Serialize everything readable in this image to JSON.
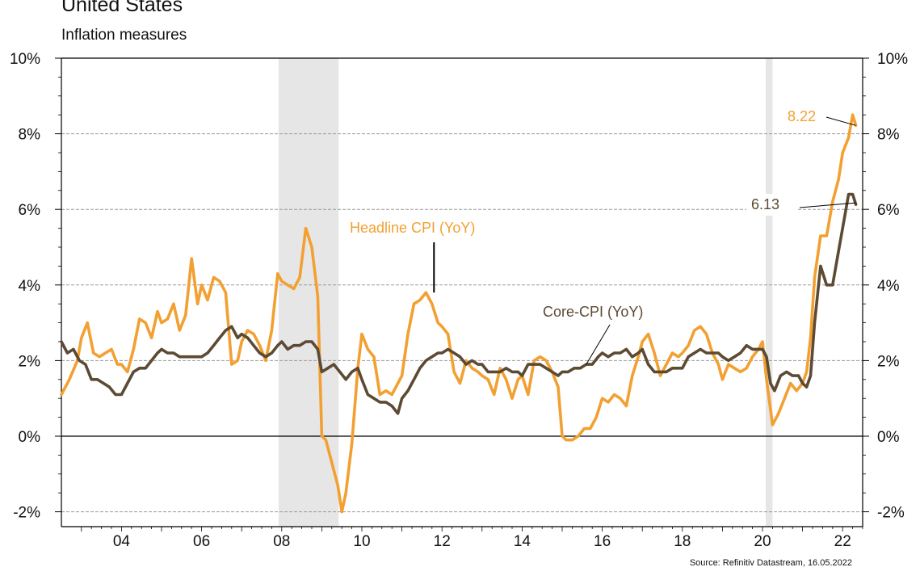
{
  "header": {
    "title": "United States",
    "subtitle": "Inflation measures"
  },
  "source": "Source: Refinitiv Datastream, 16.05.2022",
  "colors": {
    "headline": "#F2A032",
    "core": "#5C4A33",
    "recession": "#E6E6E6",
    "zero_line": "#000000",
    "grid": "#9A9A9A"
  },
  "chart_data": {
    "type": "line",
    "title": "United States",
    "subtitle": "Inflation measures",
    "y_ticks": [
      -2,
      0,
      2,
      4,
      6,
      8,
      10
    ],
    "y_tick_labels": [
      "-2%",
      "0%",
      "2%",
      "4%",
      "6%",
      "8%",
      "10%"
    ],
    "x_ticks": [
      2004,
      2006,
      2008,
      2010,
      2012,
      2014,
      2016,
      2018,
      2020,
      2022
    ],
    "x_tick_labels": [
      "04",
      "06",
      "08",
      "10",
      "12",
      "14",
      "16",
      "18",
      "20",
      "22"
    ],
    "xlim": [
      2002.5,
      2022.5
    ],
    "ylim": [
      -2.5,
      10
    ],
    "grid": "horizontal dashed",
    "recessions": [
      [
        2007.92,
        2009.42
      ],
      [
        2020.08,
        2020.25
      ]
    ],
    "annotations": [
      {
        "text": "8.22",
        "series": "Headline CPI (YoY)",
        "value": 8.22
      },
      {
        "text": "6.13",
        "series": "Core-CPI (YoY)",
        "value": 6.13
      }
    ],
    "series": [
      {
        "name": "Headline CPI (YoY)",
        "color": "#F2A032",
        "points": [
          [
            2002.5,
            1.1
          ],
          [
            2002.7,
            1.5
          ],
          [
            2002.9,
            2.0
          ],
          [
            2003.0,
            2.6
          ],
          [
            2003.15,
            3.0
          ],
          [
            2003.3,
            2.2
          ],
          [
            2003.45,
            2.1
          ],
          [
            2003.6,
            2.2
          ],
          [
            2003.75,
            2.3
          ],
          [
            2003.9,
            1.9
          ],
          [
            2004.0,
            1.9
          ],
          [
            2004.15,
            1.7
          ],
          [
            2004.3,
            2.3
          ],
          [
            2004.45,
            3.1
          ],
          [
            2004.6,
            3.0
          ],
          [
            2004.75,
            2.6
          ],
          [
            2004.9,
            3.3
          ],
          [
            2005.0,
            3.0
          ],
          [
            2005.15,
            3.1
          ],
          [
            2005.3,
            3.5
          ],
          [
            2005.45,
            2.8
          ],
          [
            2005.6,
            3.2
          ],
          [
            2005.75,
            4.7
          ],
          [
            2005.9,
            3.5
          ],
          [
            2006.0,
            4.0
          ],
          [
            2006.15,
            3.6
          ],
          [
            2006.3,
            4.2
          ],
          [
            2006.45,
            4.1
          ],
          [
            2006.6,
            3.8
          ],
          [
            2006.75,
            1.9
          ],
          [
            2006.9,
            2.0
          ],
          [
            2007.0,
            2.5
          ],
          [
            2007.15,
            2.8
          ],
          [
            2007.3,
            2.7
          ],
          [
            2007.45,
            2.4
          ],
          [
            2007.6,
            2.0
          ],
          [
            2007.75,
            2.8
          ],
          [
            2007.9,
            4.3
          ],
          [
            2008.0,
            4.1
          ],
          [
            2008.15,
            4.0
          ],
          [
            2008.3,
            3.9
          ],
          [
            2008.45,
            4.2
          ],
          [
            2008.6,
            5.5
          ],
          [
            2008.75,
            5.0
          ],
          [
            2008.9,
            3.7
          ],
          [
            2009.0,
            0.0
          ],
          [
            2009.1,
            -0.1
          ],
          [
            2009.25,
            -0.7
          ],
          [
            2009.4,
            -1.3
          ],
          [
            2009.5,
            -2.0
          ],
          [
            2009.6,
            -1.5
          ],
          [
            2009.75,
            -0.2
          ],
          [
            2009.9,
            1.8
          ],
          [
            2010.0,
            2.7
          ],
          [
            2010.15,
            2.3
          ],
          [
            2010.3,
            2.1
          ],
          [
            2010.45,
            1.1
          ],
          [
            2010.6,
            1.2
          ],
          [
            2010.75,
            1.1
          ],
          [
            2010.9,
            1.4
          ],
          [
            2011.0,
            1.6
          ],
          [
            2011.15,
            2.7
          ],
          [
            2011.3,
            3.5
          ],
          [
            2011.45,
            3.6
          ],
          [
            2011.6,
            3.8
          ],
          [
            2011.75,
            3.5
          ],
          [
            2011.9,
            3.0
          ],
          [
            2012.0,
            2.9
          ],
          [
            2012.15,
            2.7
          ],
          [
            2012.3,
            1.7
          ],
          [
            2012.45,
            1.4
          ],
          [
            2012.6,
            2.0
          ],
          [
            2012.75,
            1.8
          ],
          [
            2012.9,
            1.7
          ],
          [
            2013.0,
            1.6
          ],
          [
            2013.15,
            1.5
          ],
          [
            2013.3,
            1.1
          ],
          [
            2013.45,
            1.8
          ],
          [
            2013.6,
            1.5
          ],
          [
            2013.75,
            1.0
          ],
          [
            2013.9,
            1.5
          ],
          [
            2014.0,
            1.6
          ],
          [
            2014.15,
            1.1
          ],
          [
            2014.3,
            2.0
          ],
          [
            2014.45,
            2.1
          ],
          [
            2014.6,
            2.0
          ],
          [
            2014.75,
            1.7
          ],
          [
            2014.9,
            1.3
          ],
          [
            2015.0,
            0.0
          ],
          [
            2015.1,
            -0.1
          ],
          [
            2015.25,
            -0.1
          ],
          [
            2015.4,
            0.0
          ],
          [
            2015.55,
            0.2
          ],
          [
            2015.7,
            0.2
          ],
          [
            2015.85,
            0.5
          ],
          [
            2016.0,
            1.0
          ],
          [
            2016.15,
            0.9
          ],
          [
            2016.3,
            1.1
          ],
          [
            2016.45,
            1.0
          ],
          [
            2016.6,
            0.8
          ],
          [
            2016.75,
            1.6
          ],
          [
            2016.9,
            2.1
          ],
          [
            2017.0,
            2.5
          ],
          [
            2017.15,
            2.7
          ],
          [
            2017.3,
            2.2
          ],
          [
            2017.45,
            1.6
          ],
          [
            2017.6,
            1.9
          ],
          [
            2017.75,
            2.2
          ],
          [
            2017.9,
            2.1
          ],
          [
            2018.0,
            2.2
          ],
          [
            2018.15,
            2.4
          ],
          [
            2018.3,
            2.8
          ],
          [
            2018.45,
            2.9
          ],
          [
            2018.6,
            2.7
          ],
          [
            2018.75,
            2.2
          ],
          [
            2018.9,
            1.9
          ],
          [
            2019.0,
            1.5
          ],
          [
            2019.15,
            1.9
          ],
          [
            2019.3,
            1.8
          ],
          [
            2019.45,
            1.7
          ],
          [
            2019.6,
            1.8
          ],
          [
            2019.75,
            2.1
          ],
          [
            2019.9,
            2.3
          ],
          [
            2020.0,
            2.5
          ],
          [
            2020.1,
            1.5
          ],
          [
            2020.25,
            0.3
          ],
          [
            2020.4,
            0.6
          ],
          [
            2020.55,
            1.0
          ],
          [
            2020.7,
            1.4
          ],
          [
            2020.85,
            1.2
          ],
          [
            2021.0,
            1.4
          ],
          [
            2021.1,
            1.7
          ],
          [
            2021.2,
            2.6
          ],
          [
            2021.3,
            4.2
          ],
          [
            2021.45,
            5.3
          ],
          [
            2021.6,
            5.3
          ],
          [
            2021.75,
            6.2
          ],
          [
            2021.9,
            6.8
          ],
          [
            2022.0,
            7.5
          ],
          [
            2022.15,
            7.9
          ],
          [
            2022.25,
            8.5
          ],
          [
            2022.33,
            8.22
          ]
        ]
      },
      {
        "name": "Core-CPI (YoY)",
        "color": "#5C4A33",
        "points": [
          [
            2002.5,
            2.5
          ],
          [
            2002.65,
            2.2
          ],
          [
            2002.8,
            2.3
          ],
          [
            2002.95,
            2.0
          ],
          [
            2003.1,
            1.9
          ],
          [
            2003.25,
            1.5
          ],
          [
            2003.4,
            1.5
          ],
          [
            2003.55,
            1.4
          ],
          [
            2003.7,
            1.3
          ],
          [
            2003.85,
            1.1
          ],
          [
            2004.0,
            1.1
          ],
          [
            2004.15,
            1.4
          ],
          [
            2004.3,
            1.7
          ],
          [
            2004.45,
            1.8
          ],
          [
            2004.6,
            1.8
          ],
          [
            2004.75,
            2.0
          ],
          [
            2004.9,
            2.2
          ],
          [
            2005.0,
            2.3
          ],
          [
            2005.15,
            2.2
          ],
          [
            2005.3,
            2.2
          ],
          [
            2005.45,
            2.1
          ],
          [
            2005.6,
            2.1
          ],
          [
            2005.75,
            2.1
          ],
          [
            2005.9,
            2.1
          ],
          [
            2006.0,
            2.1
          ],
          [
            2006.15,
            2.2
          ],
          [
            2006.3,
            2.4
          ],
          [
            2006.45,
            2.6
          ],
          [
            2006.6,
            2.8
          ],
          [
            2006.75,
            2.9
          ],
          [
            2006.9,
            2.6
          ],
          [
            2007.0,
            2.7
          ],
          [
            2007.15,
            2.6
          ],
          [
            2007.3,
            2.4
          ],
          [
            2007.45,
            2.2
          ],
          [
            2007.6,
            2.1
          ],
          [
            2007.75,
            2.2
          ],
          [
            2007.9,
            2.4
          ],
          [
            2008.0,
            2.5
          ],
          [
            2008.15,
            2.3
          ],
          [
            2008.3,
            2.4
          ],
          [
            2008.45,
            2.4
          ],
          [
            2008.6,
            2.5
          ],
          [
            2008.75,
            2.5
          ],
          [
            2008.9,
            2.3
          ],
          [
            2009.0,
            1.7
          ],
          [
            2009.15,
            1.8
          ],
          [
            2009.3,
            1.9
          ],
          [
            2009.45,
            1.7
          ],
          [
            2009.6,
            1.5
          ],
          [
            2009.75,
            1.7
          ],
          [
            2009.9,
            1.8
          ],
          [
            2010.0,
            1.5
          ],
          [
            2010.15,
            1.1
          ],
          [
            2010.3,
            1.0
          ],
          [
            2010.45,
            0.9
          ],
          [
            2010.6,
            0.9
          ],
          [
            2010.75,
            0.8
          ],
          [
            2010.9,
            0.6
          ],
          [
            2011.0,
            1.0
          ],
          [
            2011.15,
            1.2
          ],
          [
            2011.3,
            1.5
          ],
          [
            2011.45,
            1.8
          ],
          [
            2011.6,
            2.0
          ],
          [
            2011.75,
            2.1
          ],
          [
            2011.9,
            2.2
          ],
          [
            2012.0,
            2.2
          ],
          [
            2012.15,
            2.3
          ],
          [
            2012.3,
            2.2
          ],
          [
            2012.45,
            2.1
          ],
          [
            2012.6,
            1.9
          ],
          [
            2012.75,
            2.0
          ],
          [
            2012.9,
            1.9
          ],
          [
            2013.0,
            1.9
          ],
          [
            2013.15,
            1.7
          ],
          [
            2013.3,
            1.7
          ],
          [
            2013.45,
            1.7
          ],
          [
            2013.6,
            1.8
          ],
          [
            2013.75,
            1.7
          ],
          [
            2013.9,
            1.7
          ],
          [
            2014.0,
            1.6
          ],
          [
            2014.15,
            1.9
          ],
          [
            2014.3,
            1.9
          ],
          [
            2014.45,
            1.9
          ],
          [
            2014.6,
            1.8
          ],
          [
            2014.75,
            1.7
          ],
          [
            2014.9,
            1.6
          ],
          [
            2015.0,
            1.7
          ],
          [
            2015.15,
            1.7
          ],
          [
            2015.3,
            1.8
          ],
          [
            2015.45,
            1.8
          ],
          [
            2015.6,
            1.9
          ],
          [
            2015.75,
            1.9
          ],
          [
            2015.9,
            2.1
          ],
          [
            2016.0,
            2.2
          ],
          [
            2016.15,
            2.1
          ],
          [
            2016.3,
            2.2
          ],
          [
            2016.45,
            2.2
          ],
          [
            2016.6,
            2.3
          ],
          [
            2016.75,
            2.1
          ],
          [
            2016.9,
            2.2
          ],
          [
            2017.0,
            2.3
          ],
          [
            2017.15,
            1.9
          ],
          [
            2017.3,
            1.7
          ],
          [
            2017.45,
            1.7
          ],
          [
            2017.6,
            1.7
          ],
          [
            2017.75,
            1.8
          ],
          [
            2017.9,
            1.8
          ],
          [
            2018.0,
            1.8
          ],
          [
            2018.15,
            2.1
          ],
          [
            2018.3,
            2.2
          ],
          [
            2018.45,
            2.3
          ],
          [
            2018.6,
            2.2
          ],
          [
            2018.75,
            2.2
          ],
          [
            2018.9,
            2.2
          ],
          [
            2019.0,
            2.1
          ],
          [
            2019.15,
            2.0
          ],
          [
            2019.3,
            2.1
          ],
          [
            2019.45,
            2.2
          ],
          [
            2019.6,
            2.4
          ],
          [
            2019.75,
            2.3
          ],
          [
            2019.9,
            2.3
          ],
          [
            2020.0,
            2.3
          ],
          [
            2020.1,
            2.1
          ],
          [
            2020.2,
            1.4
          ],
          [
            2020.3,
            1.2
          ],
          [
            2020.45,
            1.6
          ],
          [
            2020.6,
            1.7
          ],
          [
            2020.75,
            1.6
          ],
          [
            2020.9,
            1.6
          ],
          [
            2021.0,
            1.4
          ],
          [
            2021.1,
            1.3
          ],
          [
            2021.2,
            1.6
          ],
          [
            2021.3,
            3.0
          ],
          [
            2021.45,
            4.5
          ],
          [
            2021.6,
            4.0
          ],
          [
            2021.75,
            4.0
          ],
          [
            2021.9,
            4.9
          ],
          [
            2022.0,
            5.5
          ],
          [
            2022.15,
            6.4
          ],
          [
            2022.25,
            6.4
          ],
          [
            2022.33,
            6.13
          ]
        ]
      }
    ],
    "labels": [
      {
        "text": "Headline CPI (YoY)",
        "series": "Headline CPI (YoY)"
      },
      {
        "text": "Core-CPI (YoY)",
        "series": "Core-CPI (YoY)"
      }
    ]
  }
}
